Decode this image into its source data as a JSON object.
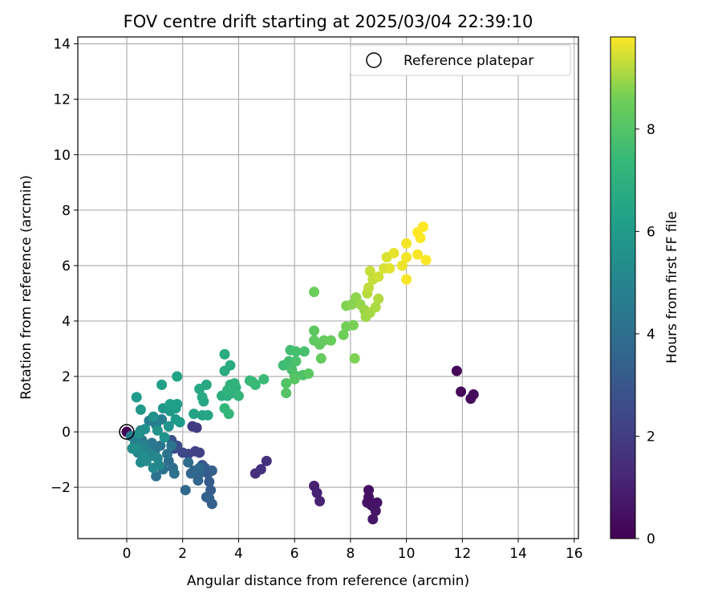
{
  "chart_data": {
    "type": "scatter",
    "title": "FOV centre drift starting at 2025/03/04 22:39:10",
    "xlabel": "Angular distance from reference (arcmin)",
    "ylabel": "Rotation from reference (arcmin)",
    "xlim": [
      -1.75,
      16.15
    ],
    "ylim": [
      -3.85,
      14.25
    ],
    "x_ticks": [
      0,
      2,
      4,
      6,
      8,
      10,
      12,
      14,
      16
    ],
    "y_ticks": [
      -2,
      0,
      2,
      4,
      6,
      8,
      10,
      12,
      14
    ],
    "x_tick_labels": [
      "0",
      "2",
      "4",
      "6",
      "8",
      "10",
      "12",
      "14",
      "16"
    ],
    "y_tick_labels": [
      "−2",
      "0",
      "2",
      "4",
      "6",
      "8",
      "10",
      "12",
      "14"
    ],
    "grid": true,
    "legend": {
      "position": "top-right",
      "entries": [
        "Reference platepar"
      ]
    },
    "reference_point": {
      "x": 0,
      "y": 0,
      "label": "Reference platepar"
    },
    "colorbar": {
      "label": "Hours from first FF file",
      "colormap": "viridis",
      "range": [
        0,
        9.8
      ],
      "ticks": [
        0,
        2,
        4,
        6,
        8
      ],
      "tick_labels": [
        "0",
        "2",
        "4",
        "6",
        "8"
      ]
    },
    "points": [
      [
        0.0,
        0.0,
        0.05
      ],
      [
        11.8,
        2.2,
        0.15
      ],
      [
        11.95,
        1.45,
        0.2
      ],
      [
        12.3,
        1.2,
        0.25
      ],
      [
        12.4,
        1.35,
        0.3
      ],
      [
        8.65,
        -2.1,
        0.45
      ],
      [
        8.6,
        -2.55,
        0.5
      ],
      [
        8.75,
        -2.65,
        0.55
      ],
      [
        8.95,
        -2.55,
        0.6
      ],
      [
        8.9,
        -2.85,
        0.65
      ],
      [
        8.8,
        -3.15,
        0.7
      ],
      [
        8.65,
        -2.35,
        0.5
      ],
      [
        6.7,
        -1.95,
        1.0
      ],
      [
        6.8,
        -2.2,
        1.05
      ],
      [
        6.9,
        -2.5,
        1.1
      ],
      [
        4.6,
        -1.5,
        1.5
      ],
      [
        4.8,
        -1.35,
        1.55
      ],
      [
        5.0,
        -1.05,
        1.6
      ],
      [
        2.35,
        0.2,
        2.0
      ],
      [
        2.5,
        0.15,
        2.05
      ],
      [
        2.45,
        -0.7,
        2.1
      ],
      [
        2.6,
        -0.75,
        2.15
      ],
      [
        2.2,
        -0.8,
        2.3
      ],
      [
        2.0,
        -0.75,
        2.4
      ],
      [
        1.8,
        -0.5,
        2.6
      ],
      [
        1.6,
        -0.3,
        2.8
      ],
      [
        1.7,
        -0.6,
        2.5
      ],
      [
        2.7,
        -1.2,
        3.0
      ],
      [
        2.8,
        -1.3,
        3.1
      ],
      [
        2.9,
        -1.5,
        3.15
      ],
      [
        2.95,
        -1.8,
        3.2
      ],
      [
        3.0,
        -2.1,
        3.25
      ],
      [
        2.85,
        -2.35,
        3.35
      ],
      [
        3.05,
        -2.6,
        3.4
      ],
      [
        2.95,
        -2.4,
        3.45
      ],
      [
        3.05,
        -1.4,
        3.3
      ],
      [
        2.4,
        -1.4,
        3.5
      ],
      [
        2.6,
        -1.5,
        3.55
      ],
      [
        2.55,
        -1.75,
        3.6
      ],
      [
        2.3,
        -1.5,
        3.65
      ],
      [
        2.1,
        -2.1,
        3.7
      ],
      [
        2.6,
        -1.3,
        3.75
      ],
      [
        2.2,
        -1.1,
        3.8
      ],
      [
        1.5,
        -1.05,
        3.9
      ],
      [
        1.65,
        -1.3,
        3.95
      ],
      [
        1.7,
        -1.5,
        4.05
      ],
      [
        1.3,
        -1.35,
        4.1
      ],
      [
        1.05,
        -1.6,
        4.15
      ],
      [
        1.45,
        -0.8,
        4.2
      ],
      [
        1.6,
        -0.5,
        4.3
      ],
      [
        1.2,
        -0.5,
        4.35
      ],
      [
        1.0,
        -0.7,
        4.4
      ],
      [
        0.9,
        -0.4,
        4.45
      ],
      [
        0.55,
        -0.3,
        4.5
      ],
      [
        0.3,
        -0.25,
        4.55
      ],
      [
        0.15,
        -0.15,
        4.6
      ],
      [
        0.8,
        0.4,
        4.65
      ],
      [
        1.05,
        0.25,
        4.7
      ],
      [
        1.25,
        0.45,
        4.75
      ],
      [
        0.5,
        0.05,
        4.8
      ],
      [
        0.3,
        -0.4,
        4.85
      ],
      [
        0.4,
        -0.75,
        4.9
      ],
      [
        0.6,
        -0.5,
        4.95
      ],
      [
        0.75,
        -0.7,
        5.0
      ],
      [
        0.9,
        -0.85,
        5.05
      ],
      [
        1.1,
        -0.95,
        5.1
      ],
      [
        1.15,
        -1.2,
        5.15
      ],
      [
        0.95,
        -1.3,
        5.2
      ],
      [
        0.7,
        -1.05,
        5.25
      ],
      [
        0.5,
        -1.1,
        5.3
      ],
      [
        0.55,
        -0.85,
        5.35
      ],
      [
        0.35,
        -0.6,
        5.4
      ],
      [
        0.2,
        -0.6,
        5.45
      ],
      [
        0.45,
        -0.05,
        5.5
      ],
      [
        0.65,
        0.1,
        5.55
      ],
      [
        0.95,
        0.55,
        5.6
      ],
      [
        1.1,
        0.05,
        5.65
      ],
      [
        1.35,
        -0.2,
        5.7
      ],
      [
        1.5,
        0.2,
        5.75
      ],
      [
        1.3,
        0.85,
        5.8
      ],
      [
        1.55,
        0.75,
        5.85
      ],
      [
        0.5,
        0.8,
        5.9
      ],
      [
        0.35,
        1.25,
        5.95
      ],
      [
        1.75,
        0.45,
        6.0
      ],
      [
        1.9,
        0.35,
        6.05
      ],
      [
        1.75,
        0.85,
        6.1
      ],
      [
        1.8,
        1.0,
        6.15
      ],
      [
        1.55,
        1.0,
        6.2
      ],
      [
        1.25,
        1.7,
        6.25
      ],
      [
        1.8,
        2.0,
        6.3
      ],
      [
        2.4,
        0.65,
        6.35
      ],
      [
        2.7,
        0.6,
        6.4
      ],
      [
        2.9,
        0.6,
        6.45
      ],
      [
        2.75,
        1.1,
        6.5
      ],
      [
        2.6,
        1.55,
        6.55
      ],
      [
        2.85,
        1.7,
        6.6
      ],
      [
        2.7,
        1.25,
        6.65
      ],
      [
        3.5,
        2.8,
        6.7
      ],
      [
        3.5,
        2.2,
        6.75
      ],
      [
        3.7,
        2.4,
        6.8
      ],
      [
        3.4,
        1.3,
        6.85
      ],
      [
        3.6,
        1.3,
        6.9
      ],
      [
        3.8,
        1.4,
        6.95
      ],
      [
        3.9,
        1.6,
        7.0
      ],
      [
        3.85,
        1.75,
        7.05
      ],
      [
        3.7,
        1.7,
        7.1
      ],
      [
        3.6,
        1.5,
        7.15
      ],
      [
        3.5,
        0.85,
        7.2
      ],
      [
        3.65,
        0.65,
        7.25
      ],
      [
        4.0,
        1.3,
        7.3
      ],
      [
        4.4,
        1.85,
        7.35
      ],
      [
        4.6,
        1.7,
        7.4
      ],
      [
        4.5,
        1.8,
        7.45
      ],
      [
        4.9,
        1.9,
        7.5
      ],
      [
        5.6,
        2.4,
        7.55
      ],
      [
        5.8,
        2.55,
        7.6
      ],
      [
        5.85,
        2.95,
        7.65
      ],
      [
        6.05,
        2.9,
        7.7
      ],
      [
        6.35,
        2.9,
        7.75
      ],
      [
        5.9,
        2.25,
        7.8
      ],
      [
        6.05,
        2.55,
        7.85
      ],
      [
        6.3,
        2.05,
        7.9
      ],
      [
        6.0,
        2.05,
        7.95
      ],
      [
        5.7,
        1.75,
        8.0
      ],
      [
        5.7,
        1.4,
        8.05
      ],
      [
        6.0,
        1.9,
        8.1
      ],
      [
        6.5,
        2.1,
        8.15
      ],
      [
        6.7,
        3.65,
        8.2
      ],
      [
        6.7,
        3.3,
        8.25
      ],
      [
        6.9,
        3.15,
        8.3
      ],
      [
        7.05,
        3.3,
        8.35
      ],
      [
        6.95,
        2.65,
        8.4
      ],
      [
        7.3,
        3.3,
        8.45
      ],
      [
        6.7,
        5.05,
        8.5
      ],
      [
        7.75,
        3.5,
        8.55
      ],
      [
        7.85,
        3.8,
        8.6
      ],
      [
        8.1,
        3.85,
        8.65
      ],
      [
        8.15,
        2.65,
        8.7
      ],
      [
        7.85,
        4.55,
        8.75
      ],
      [
        8.05,
        4.6,
        8.8
      ],
      [
        8.2,
        4.85,
        8.85
      ],
      [
        8.35,
        4.6,
        8.9
      ],
      [
        8.5,
        4.4,
        8.95
      ],
      [
        8.55,
        4.15,
        9.0
      ],
      [
        8.7,
        4.3,
        9.05
      ],
      [
        8.9,
        4.5,
        9.1
      ],
      [
        9.0,
        4.8,
        9.15
      ],
      [
        8.6,
        5.0,
        9.2
      ],
      [
        8.65,
        5.2,
        9.25
      ],
      [
        8.8,
        5.5,
        9.3
      ],
      [
        8.7,
        5.8,
        9.35
      ],
      [
        9.0,
        5.6,
        9.4
      ],
      [
        9.2,
        5.9,
        9.45
      ],
      [
        9.3,
        6.3,
        9.5
      ],
      [
        9.4,
        5.9,
        9.55
      ],
      [
        9.55,
        6.45,
        9.6
      ],
      [
        9.85,
        6.0,
        9.65
      ],
      [
        10.0,
        6.3,
        9.7
      ],
      [
        10.0,
        6.8,
        9.72
      ],
      [
        10.0,
        5.5,
        9.74
      ],
      [
        10.4,
        6.4,
        9.76
      ],
      [
        10.7,
        6.2,
        9.78
      ],
      [
        10.5,
        7.0,
        9.79
      ],
      [
        10.6,
        7.4,
        9.8
      ],
      [
        10.4,
        7.2,
        9.81
      ]
    ]
  }
}
